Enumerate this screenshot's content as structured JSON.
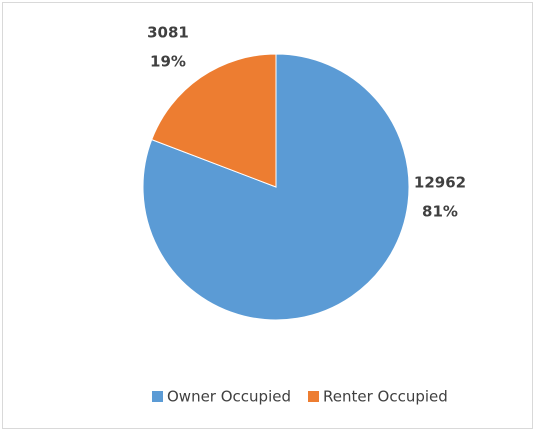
{
  "chart_data": {
    "type": "pie",
    "categories": [
      "Owner Occupied",
      "Renter Occupied"
    ],
    "values": [
      12962,
      3081
    ],
    "percentages": [
      81,
      19
    ],
    "percentage_labels": [
      "81%",
      "19%"
    ],
    "colors": [
      "#5b9bd5",
      "#ed7d31"
    ],
    "legend": "bottom"
  }
}
